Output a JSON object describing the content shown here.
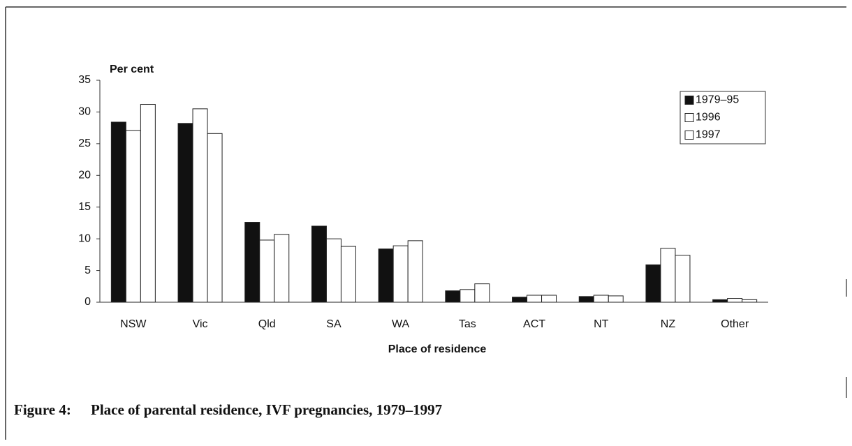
{
  "chart_data": {
    "type": "bar",
    "figure_label": "Figure 4:",
    "title": "Place of parental residence, IVF pregnancies, 1979–1997",
    "ylabel": "Per cent",
    "xlabel": "Place of residence",
    "categories": [
      "NSW",
      "Vic",
      "Qld",
      "SA",
      "WA",
      "Tas",
      "ACT",
      "NT",
      "NZ",
      "Other"
    ],
    "series": [
      {
        "name": "1979–95",
        "color": "#111111",
        "values": [
          28.4,
          28.2,
          12.6,
          12.0,
          8.4,
          1.8,
          0.8,
          0.9,
          5.9,
          0.4
        ]
      },
      {
        "name": "1996",
        "color": "#ffffff",
        "values": [
          27.1,
          30.5,
          9.8,
          10.0,
          8.9,
          2.0,
          1.1,
          1.1,
          8.5,
          0.6
        ]
      },
      {
        "name": "1997",
        "color": "#ffffff",
        "values": [
          31.2,
          26.6,
          10.7,
          8.8,
          9.7,
          2.9,
          1.1,
          1.0,
          7.4,
          0.4
        ]
      }
    ],
    "ylim": [
      0,
      35
    ],
    "yticks": [
      0,
      5,
      10,
      15,
      20,
      25,
      30,
      35
    ],
    "grid": false,
    "legend": "upper right"
  }
}
